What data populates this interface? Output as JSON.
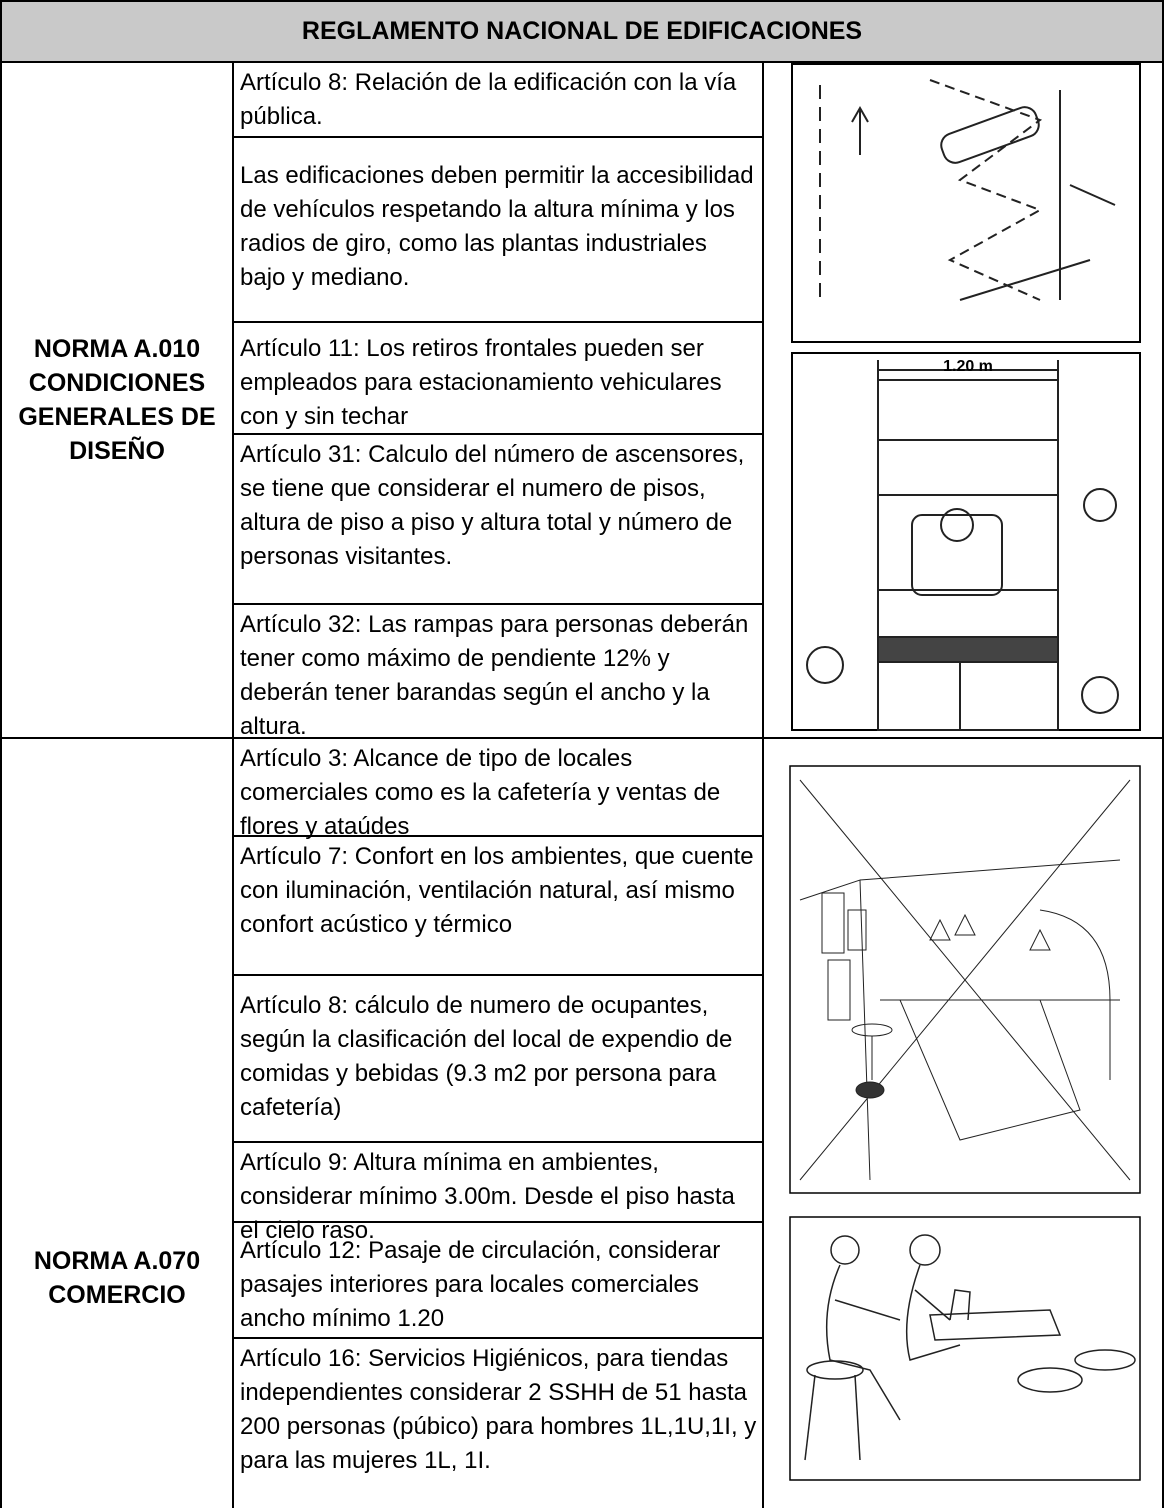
{
  "header": {
    "title": "REGLAMENTO NACIONAL DE EDIFICACIONES"
  },
  "sections": [
    {
      "label": "NORMA A.010 CONDICIONES GENERALES DE DISEÑO",
      "rows": [
        "Artículo 8: Relación de la edificación con la vía pública.",
        "Las edificaciones deben permitir la accesibilidad de vehículos respetando la altura mínima y los radios de giro, como las plantas industriales bajo y mediano.",
        "Artículo 11: Los retiros frontales pueden ser empleados para estacionamiento vehiculares con y sin techar",
        "Artículo 31: Calculo del número de ascensores, se tiene que considerar el numero de pisos, altura de piso a piso y altura total y número de personas visitantes.",
        "Artículo 32: Las rampas para personas deberán tener como máximo de pendiente 12% y deberán tener barandas según el ancho y la altura."
      ]
    },
    {
      "label": "NORMA A.070 COMERCIO",
      "rows": [
        "Artículo 3: Alcance de tipo de locales comerciales como es la cafetería y ventas de flores y ataúdes",
        "Artículo 7: Confort en los ambientes, que cuente con iluminación, ventilación natural, así mismo confort acústico y térmico",
        "Artículo 8: cálculo de numero de ocupantes, según la clasificación del local de expendio de comidas y bebidas (9.3 m2 por persona para cafetería)",
        "Artículo 9: Altura mínima en ambientes, considerar mínimo 3.00m. Desde el piso hasta el cielo raso.",
        "Artículo 12: Pasaje de circulación, considerar pasajes interiores para locales comerciales ancho mínimo 1.20",
        "Artículo 16: Servicios Higiénicos, para tiendas independientes considerar 2 SSHH de 51 hasta 200 personas (púbico) para hombres 1L,1U,1I, y para las mujeres 1L, 1I."
      ]
    }
  ],
  "figures": {
    "ramp_width": "1.20 m"
  }
}
